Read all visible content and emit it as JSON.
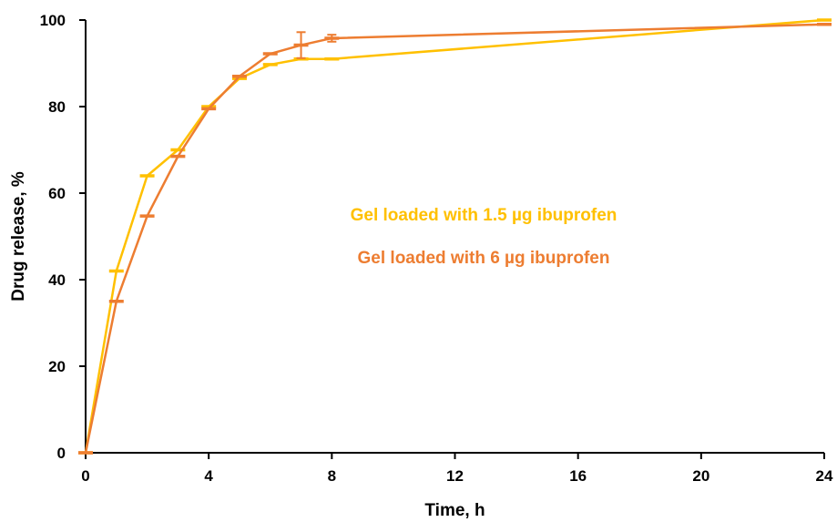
{
  "chart_data": {
    "type": "line",
    "title": "",
    "xlabel": "Time, h",
    "ylabel": "Drug release, %",
    "xlim": [
      0,
      24
    ],
    "ylim": [
      0,
      100
    ],
    "x_ticks": [
      0,
      4,
      8,
      12,
      16,
      20,
      24
    ],
    "y_ticks": [
      0,
      20,
      40,
      60,
      80,
      100
    ],
    "grid": false,
    "legend_placement": "center",
    "series": [
      {
        "name": "Gel loaded with 1.5 µg ibuprofen",
        "color": "#FFC000",
        "points": [
          {
            "x": 0,
            "y": 0,
            "err": 0
          },
          {
            "x": 1,
            "y": 42,
            "err": 0
          },
          {
            "x": 2,
            "y": 64,
            "err": 0
          },
          {
            "x": 3,
            "y": 70,
            "err": 0.4
          },
          {
            "x": 4,
            "y": 80,
            "err": 0.4
          },
          {
            "x": 5,
            "y": 86.5,
            "err": 0.4
          },
          {
            "x": 6,
            "y": 89.7,
            "err": 0.3
          },
          {
            "x": 7,
            "y": 91,
            "err": 0.3
          },
          {
            "x": 8,
            "y": 91,
            "err": 0.2
          },
          {
            "x": 24,
            "y": 100,
            "err": 0.3
          }
        ]
      },
      {
        "name": "Gel loaded with 6 µg ibuprofen",
        "color": "#ED7D31",
        "points": [
          {
            "x": 0,
            "y": 0,
            "err": 0
          },
          {
            "x": 1,
            "y": 35,
            "err": 0.3
          },
          {
            "x": 2,
            "y": 54.7,
            "err": 0.3
          },
          {
            "x": 3,
            "y": 68.5,
            "err": 0.5
          },
          {
            "x": 4,
            "y": 79.5,
            "err": 0.5
          },
          {
            "x": 5,
            "y": 87,
            "err": 0.3
          },
          {
            "x": 6,
            "y": 92.2,
            "err": 0.3
          },
          {
            "x": 7,
            "y": 94.2,
            "err": 3
          },
          {
            "x": 8,
            "y": 95.8,
            "err": 0.8
          },
          {
            "x": 24,
            "y": 99,
            "err": 0.3
          }
        ]
      }
    ]
  }
}
